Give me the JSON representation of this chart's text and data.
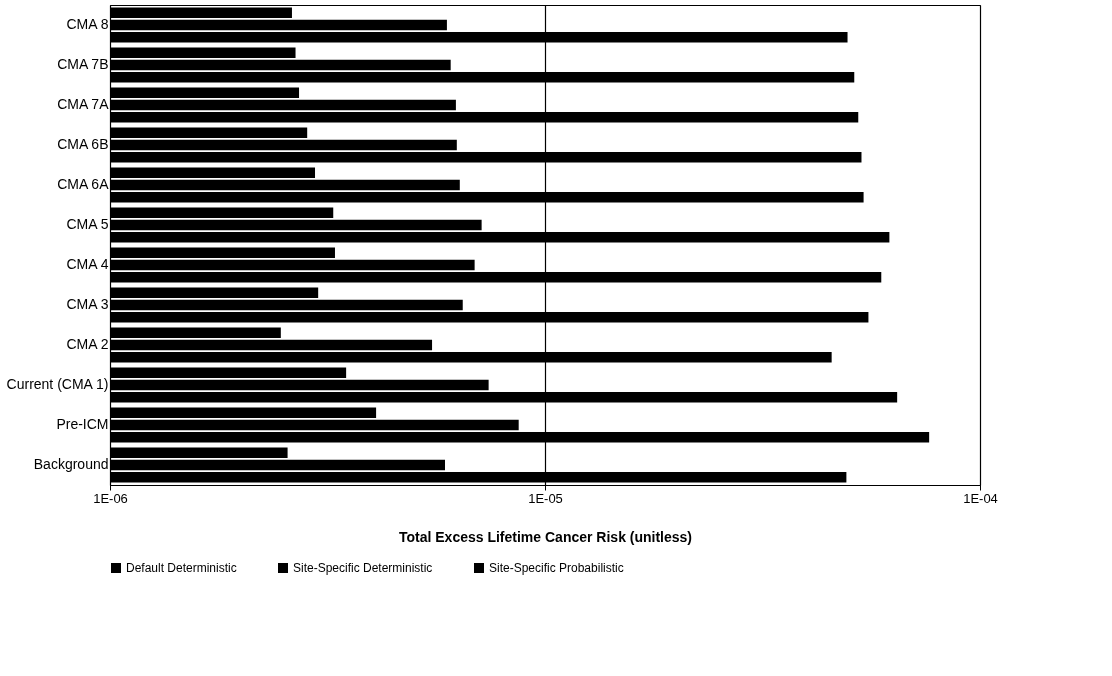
{
  "chart_data": {
    "type": "bar",
    "orientation": "horizontal",
    "xlabel": "Total Excess Lifetime Cancer Risk (unitless)",
    "categories": [
      "CMA 8",
      "CMA 7B",
      "CMA 7A",
      "CMA 6B",
      "CMA 6A",
      "CMA 5",
      "CMA 4",
      "CMA 3",
      "CMA 2",
      "Current (CMA 1)",
      "Pre-ICM",
      "Background"
    ],
    "series": [
      {
        "name": "Default Deterministic",
        "color": "#000000",
        "values": [
          2.62e-06,
          2.67e-06,
          2.72e-06,
          2.84e-06,
          2.96e-06,
          3.26e-06,
          3.29e-06,
          3.01e-06,
          2.47e-06,
          3.49e-06,
          4.09e-06,
          2.56e-06
        ]
      },
      {
        "name": "Site-Specific Deterministic",
        "color": "#000000",
        "values": [
          5.95e-06,
          6.07e-06,
          6.24e-06,
          6.27e-06,
          6.37e-06,
          7.15e-06,
          6.89e-06,
          6.47e-06,
          5.5e-06,
          7.42e-06,
          8.7e-06,
          5.89e-06
        ]
      },
      {
        "name": "Site-Specific Probabilistic",
        "color": "#000000",
        "values": [
          4.96e-05,
          5.14e-05,
          5.25e-05,
          5.34e-05,
          5.4e-05,
          6.19e-05,
          5.93e-05,
          5.54e-05,
          4.56e-05,
          6.45e-05,
          7.64e-05,
          4.93e-05
        ]
      }
    ],
    "log": "x",
    "xlim": [
      1e-06,
      0.0001
    ],
    "xticks": [
      {
        "value": 1e-06,
        "label": "1E-06"
      },
      {
        "value": 1e-05,
        "label": "1E-05"
      },
      {
        "value": 0.0001,
        "label": "1E-04"
      }
    ],
    "grid": "x",
    "legend": "bottom"
  }
}
